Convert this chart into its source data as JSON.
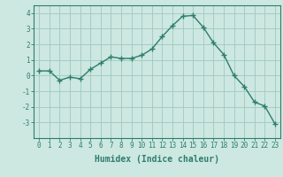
{
  "x": [
    0,
    1,
    2,
    3,
    4,
    5,
    6,
    7,
    8,
    9,
    10,
    11,
    12,
    13,
    14,
    15,
    16,
    17,
    18,
    19,
    20,
    21,
    22,
    23
  ],
  "y": [
    0.3,
    0.3,
    -0.3,
    -0.1,
    -0.2,
    0.4,
    0.8,
    1.2,
    1.1,
    1.1,
    1.3,
    1.7,
    2.5,
    3.2,
    3.8,
    3.85,
    3.1,
    2.1,
    1.35,
    0.0,
    -0.7,
    -1.7,
    -1.95,
    -3.1
  ],
  "line_color": "#2e7d6e",
  "marker": "+",
  "bg_color": "#cce8e0",
  "grid_color": "#a0c8c0",
  "axis_color": "#2e7d6e",
  "xlabel": "Humidex (Indice chaleur)",
  "ylim": [
    -4,
    4.5
  ],
  "xlim": [
    -0.5,
    23.5
  ],
  "yticks": [
    -3,
    -2,
    -1,
    0,
    1,
    2,
    3,
    4
  ],
  "xticks": [
    0,
    1,
    2,
    3,
    4,
    5,
    6,
    7,
    8,
    9,
    10,
    11,
    12,
    13,
    14,
    15,
    16,
    17,
    18,
    19,
    20,
    21,
    22,
    23
  ],
  "tick_fontsize": 5.5,
  "label_fontsize": 7
}
